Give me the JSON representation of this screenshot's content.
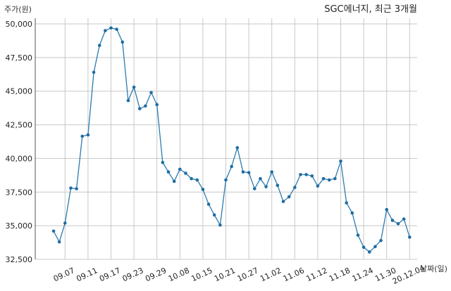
{
  "chart_data": {
    "type": "line",
    "title": "SGC에너지, 최근 3개월",
    "ylabel": "주가(원)",
    "xlabel": "날짜(일)",
    "ylim": [
      32500,
      50000
    ],
    "yticks": [
      32500,
      35000,
      37500,
      40000,
      42500,
      45000,
      47500,
      50000
    ],
    "ytick_labels": [
      "32,500",
      "35,000",
      "37,500",
      "40,000",
      "42,500",
      "45,000",
      "47,500",
      "50,000"
    ],
    "xtick_labels": [
      "09.07",
      "09.11",
      "09.17",
      "09.23",
      "09.29",
      "10.08",
      "10.15",
      "10.21",
      "10.27",
      "11.02",
      "11.06",
      "11.12",
      "11.18",
      "11.24",
      "11.30",
      "20.12.04"
    ],
    "xtick_positions": [
      2,
      6,
      10,
      14,
      18,
      22,
      26,
      30,
      34,
      38,
      42,
      46,
      50,
      54,
      58,
      62
    ],
    "grid": true,
    "series": [
      {
        "name": "",
        "color": "#2b7bb0",
        "values": [
          34600,
          33800,
          35200,
          37800,
          37750,
          41650,
          41750,
          46400,
          48400,
          49500,
          49700,
          49600,
          48650,
          44300,
          45300,
          43700,
          43900,
          44900,
          44000,
          39700,
          39000,
          38300,
          39200,
          38900,
          38500,
          38400,
          37700,
          36600,
          35800,
          35050,
          38400,
          39400,
          40800,
          39000,
          38950,
          37750,
          38500,
          37900,
          39000,
          38000,
          36800,
          37150,
          37850,
          38800,
          38800,
          38700,
          37950,
          38500,
          38400,
          38500,
          39800,
          36700,
          35950,
          34300,
          33400,
          33050,
          33450,
          33900,
          36200,
          35400,
          35150,
          35500,
          34150
        ]
      }
    ]
  }
}
